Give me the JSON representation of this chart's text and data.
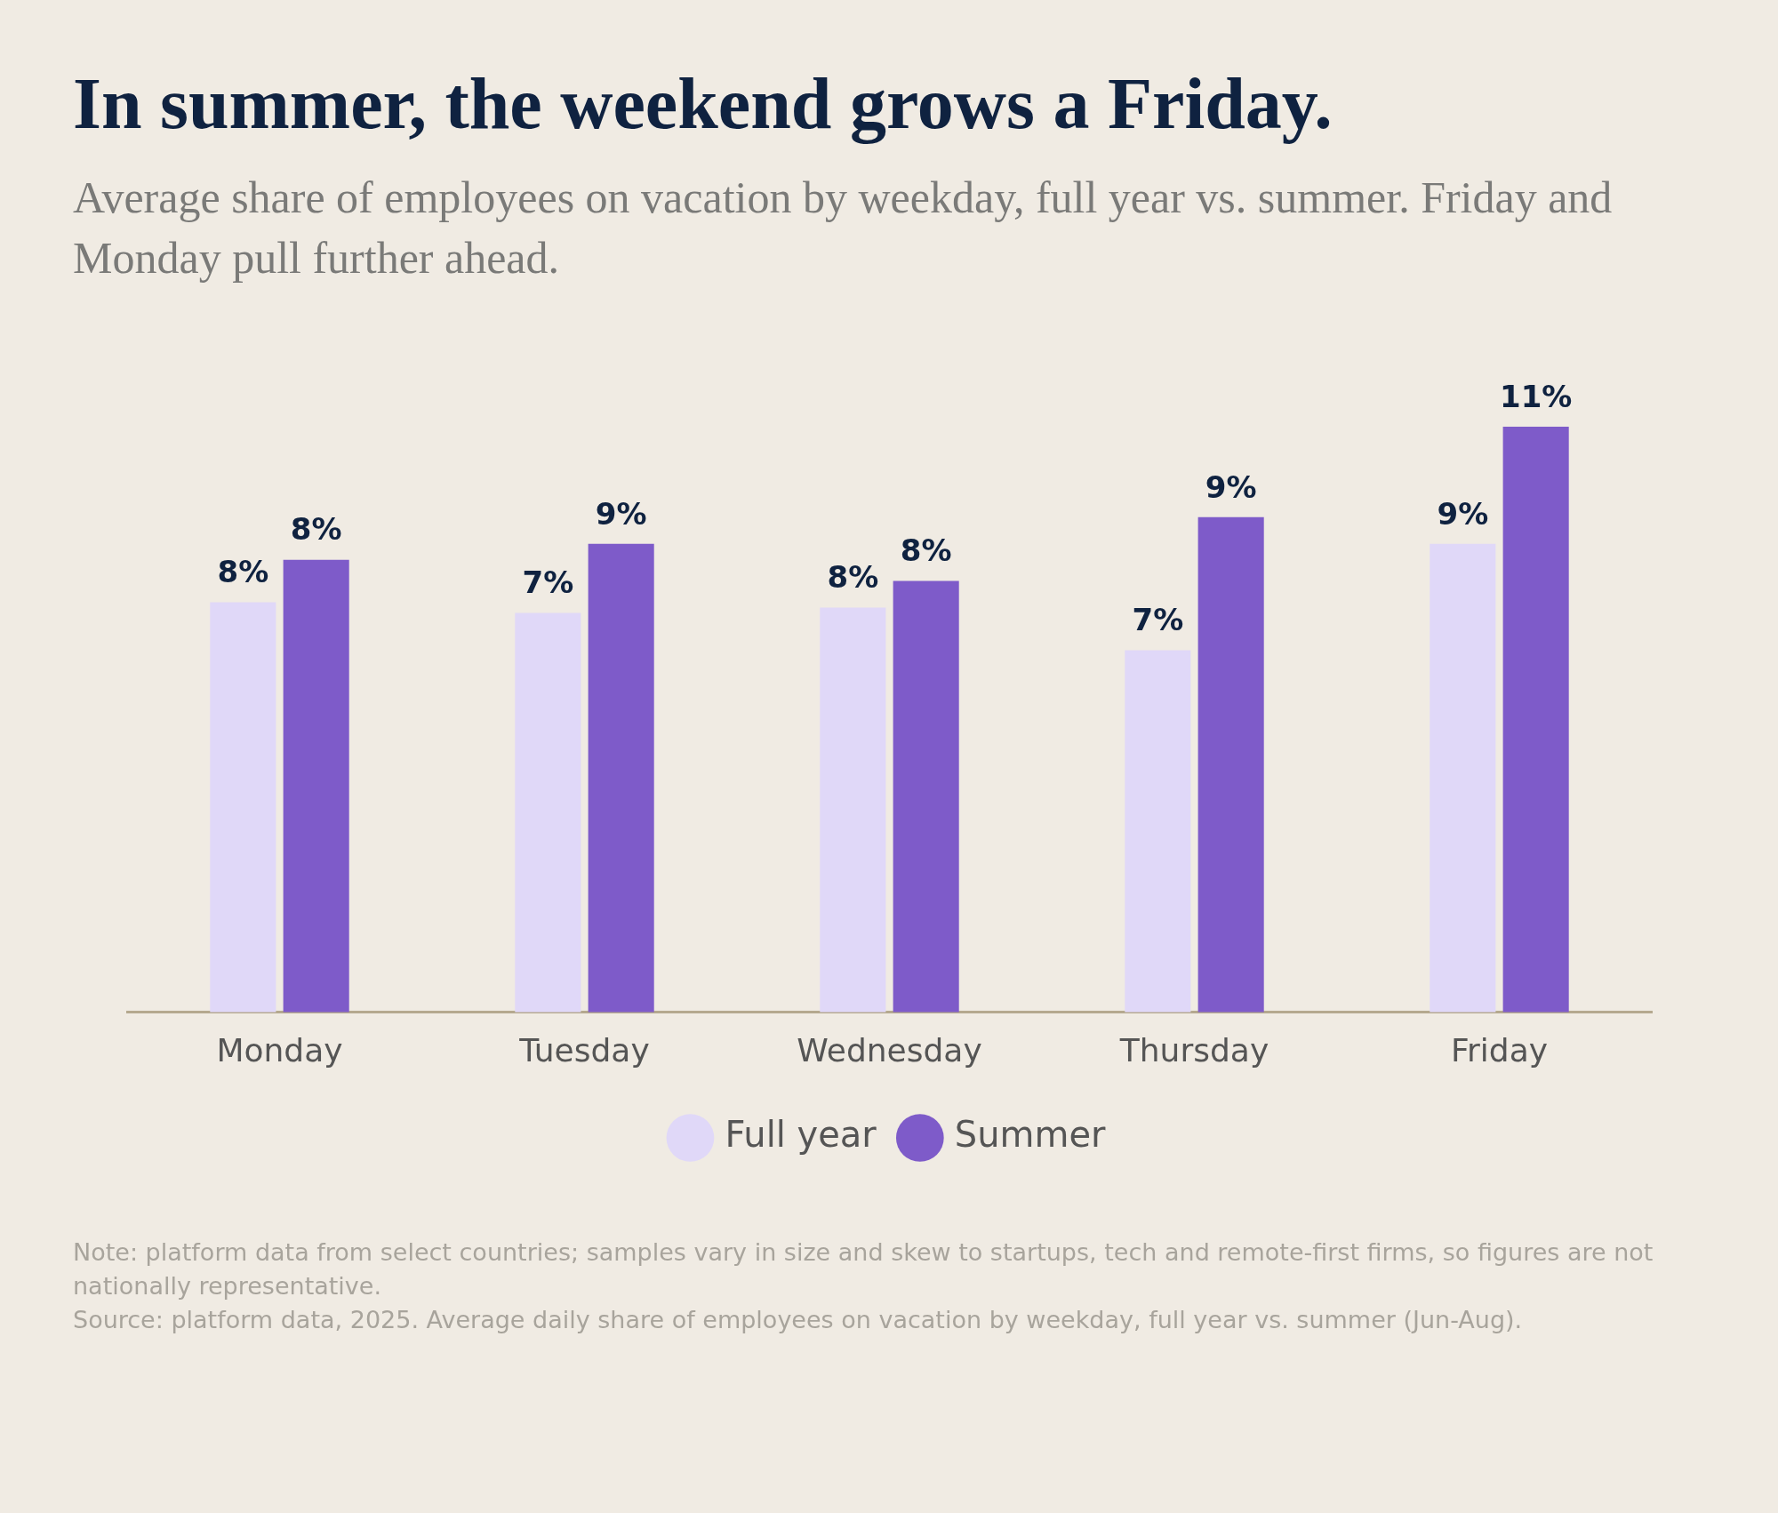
{
  "chart_data": {
    "type": "bar",
    "title": "In summer, the weekend grows a Friday.",
    "subtitle": "Average share of employees on vacation by weekday, full year vs. summer. Friday and Monday pull further ahead.",
    "categories": [
      "Monday",
      "Tuesday",
      "Wednesday",
      "Thursday",
      "Friday"
    ],
    "series": [
      {
        "name": "Full year",
        "color": "#e0d8f8",
        "values": [
          7.7,
          7.5,
          7.6,
          6.8,
          8.8
        ],
        "value_labels": [
          "8%",
          "7%",
          "8%",
          "7%",
          "9%"
        ]
      },
      {
        "name": "Summer",
        "color": "#7e5bc9",
        "values": [
          8.5,
          8.8,
          8.1,
          9.3,
          11.0
        ],
        "value_labels": [
          "8%",
          "9%",
          "8%",
          "9%",
          "11%"
        ]
      }
    ],
    "grid": false,
    "legend": "bottom",
    "annotations": [
      "Note: platform data from select countries; samples vary in size and skew to startups, tech and remote-first firms, so figures are not nationally representative.",
      "Source: platform data, 2025. Average daily share of employees on vacation by weekday, full year vs. summer (Jun-Aug)."
    ]
  }
}
